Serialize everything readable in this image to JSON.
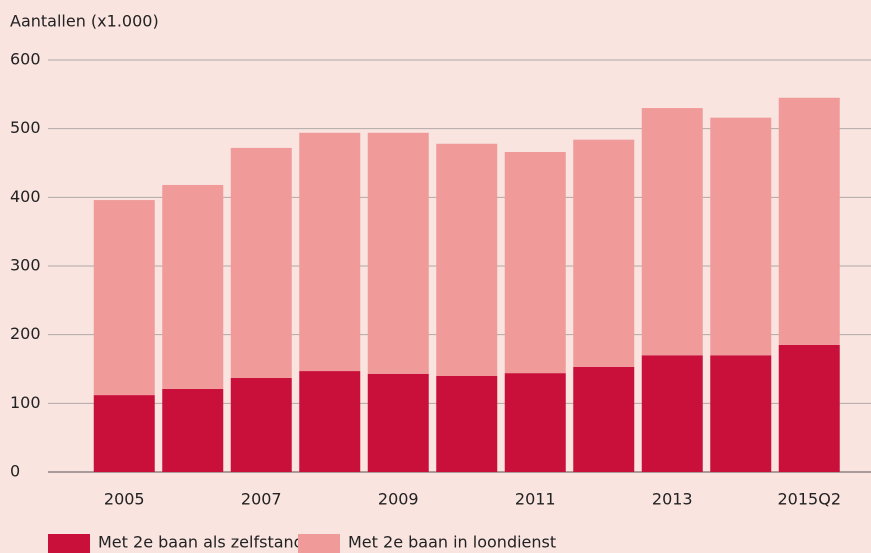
{
  "chart_data": {
    "type": "stacked_bar",
    "y_label": "Aantallen (x1.000)",
    "categories": [
      "2005",
      null,
      "2007",
      null,
      "2009",
      null,
      "2011",
      null,
      "2013",
      null,
      "2015Q2"
    ],
    "series": [
      {
        "name": "Met 2e baan als zelfstandige",
        "color": "#c8103a",
        "values": [
          112,
          121,
          137,
          147,
          143,
          140,
          144,
          153,
          170,
          170,
          185
        ]
      },
      {
        "name": "Met 2e baan in loondienst",
        "color": "#f09a99",
        "values": [
          284,
          297,
          335,
          347,
          351,
          338,
          322,
          331,
          360,
          346,
          360
        ]
      }
    ],
    "ylim": [
      0,
      600
    ],
    "yticks": [
      0,
      100,
      200,
      300,
      400,
      500,
      600
    ],
    "grid": true,
    "legend": "bottom"
  }
}
